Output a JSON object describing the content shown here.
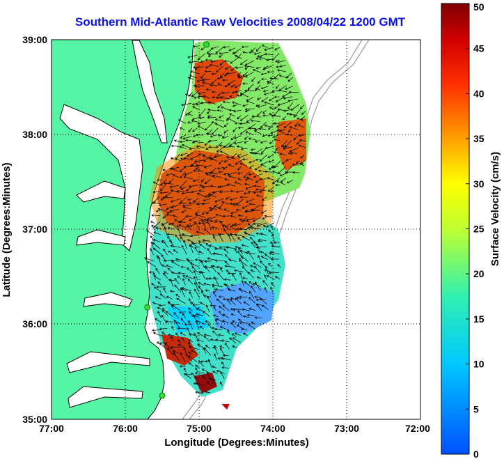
{
  "title": "Southern Mid-Atlantic Raw Velocities 2008/04/22 1200 GMT",
  "xlabel": "Longitude (Degrees:Minutes)",
  "ylabel": "Latitude (Degrees:Minutes)",
  "x_ticks": [
    "77:00",
    "76:00",
    "75:00",
    "74:00",
    "73:00",
    "72:00"
  ],
  "y_ticks": [
    "39:00",
    "38:00",
    "37:00",
    "36:00",
    "35:00"
  ],
  "colorbar": {
    "label": "Surface Velocity (cm/s)",
    "ticks": [
      "50",
      "45",
      "40",
      "35",
      "30",
      "25",
      "20",
      "15",
      "10",
      "5",
      "0"
    ],
    "range": [
      0,
      50
    ]
  },
  "colors": {
    "land": "#55f5a5",
    "title": "#0a10e8",
    "bathymetry": "#9a9a9a"
  },
  "extent": {
    "lon": [
      -77,
      -72
    ],
    "lat": [
      35,
      39
    ]
  },
  "radar_sites": [
    {
      "lon": -74.9,
      "lat": 38.95
    },
    {
      "lon": -75.7,
      "lat": 36.18
    },
    {
      "lon": -75.5,
      "lat": 35.25
    }
  ]
}
